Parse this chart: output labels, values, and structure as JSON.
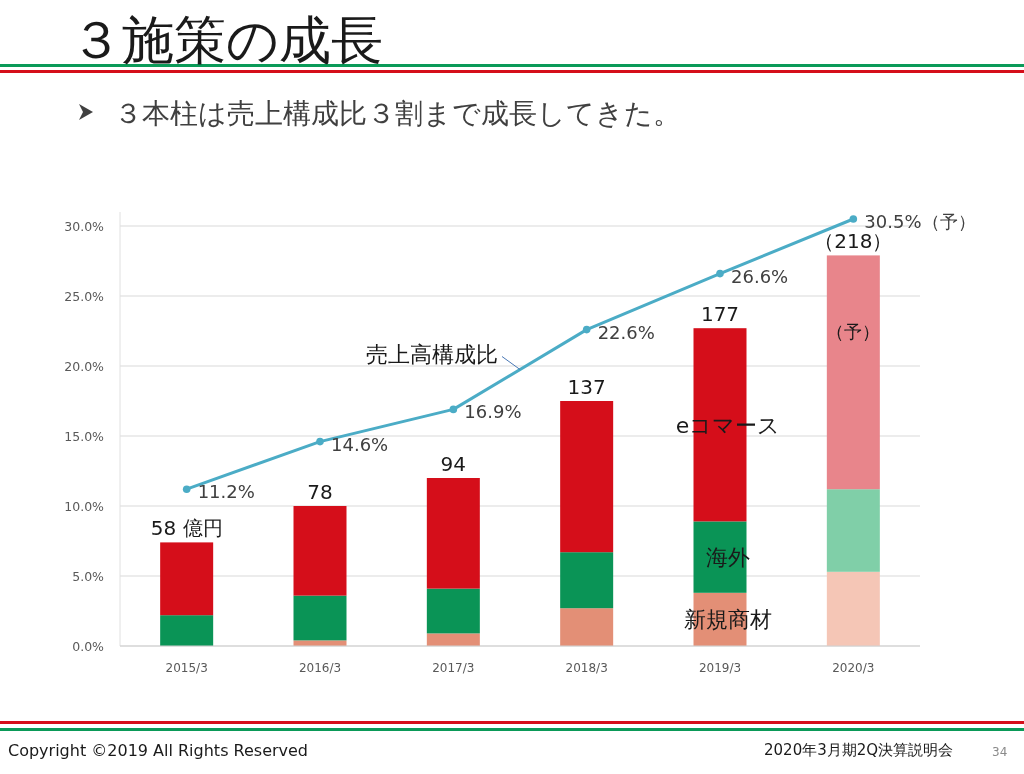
{
  "chart_data": {
    "type": "bar",
    "stacked": true,
    "title": "３施策の成長",
    "subtitle": "３本柱は売上構成比３割まで成長してきた。",
    "categories": [
      "2015/3",
      "2016/3",
      "2017/3",
      "2018/3",
      "2019/3",
      "2020/3"
    ],
    "series": [
      {
        "name": "新規商材",
        "colors": [
          "#e38f76",
          "#e38f76",
          "#e38f76",
          "#e38f76",
          "#e38f76",
          "#f5c6b6"
        ],
        "values": [
          0,
          0.4,
          0.9,
          2.7,
          3.8,
          5.3
        ]
      },
      {
        "name": "海外",
        "colors": [
          "#0a9456",
          "#0a9456",
          "#0a9456",
          "#0a9456",
          "#0a9456",
          "#80cfa8"
        ],
        "values": [
          2.2,
          3.2,
          3.2,
          4.0,
          5.1,
          5.9
        ]
      },
      {
        "name": "eコマース",
        "colors": [
          "#d50e1a",
          "#d50e1a",
          "#d50e1a",
          "#d50e1a",
          "#d50e1a",
          "#e8858b"
        ],
        "values": [
          5.2,
          6.4,
          7.9,
          10.8,
          13.8,
          16.7
        ]
      },
      {
        "name": "売上高構成比",
        "type": "line",
        "color": "#4bacc6",
        "marker": "circle",
        "values": [
          11.2,
          14.6,
          16.9,
          22.6,
          26.6,
          30.5
        ],
        "value_labels": [
          "11.2%",
          "14.6%",
          "16.9%",
          "22.6%",
          "26.6%",
          "30.5%（予）"
        ]
      }
    ],
    "ylim": [
      0,
      31
    ],
    "yticks": [
      {
        "value": 0,
        "label": "0.0%"
      },
      {
        "value": 5,
        "label": "5.0%"
      },
      {
        "value": 10,
        "label": "10.0%"
      },
      {
        "value": 15,
        "label": "15.0%"
      },
      {
        "value": 20,
        "label": "20.0%"
      },
      {
        "value": 25,
        "label": "25.0%"
      },
      {
        "value": 30,
        "label": "30.0%"
      }
    ],
    "grid": "y",
    "annotations": [
      {
        "text": "58 億円",
        "x": "2015/3",
        "y": 7.4
      },
      {
        "text": "78",
        "x": "2016/3",
        "y": 10.0
      },
      {
        "text": "94",
        "x": "2017/3",
        "y": 12.0
      },
      {
        "text": "137",
        "x": "2018/3",
        "y": 17.5
      },
      {
        "text": "177",
        "x": "2019/3",
        "y": 22.7
      },
      {
        "text": "（218）",
        "x": "2020/3",
        "y": 27.9
      },
      "（予）",
      "Copyright ©2019 All Rights Reserved",
      "2020年3月期2Q決算説明会",
      "34"
    ]
  }
}
